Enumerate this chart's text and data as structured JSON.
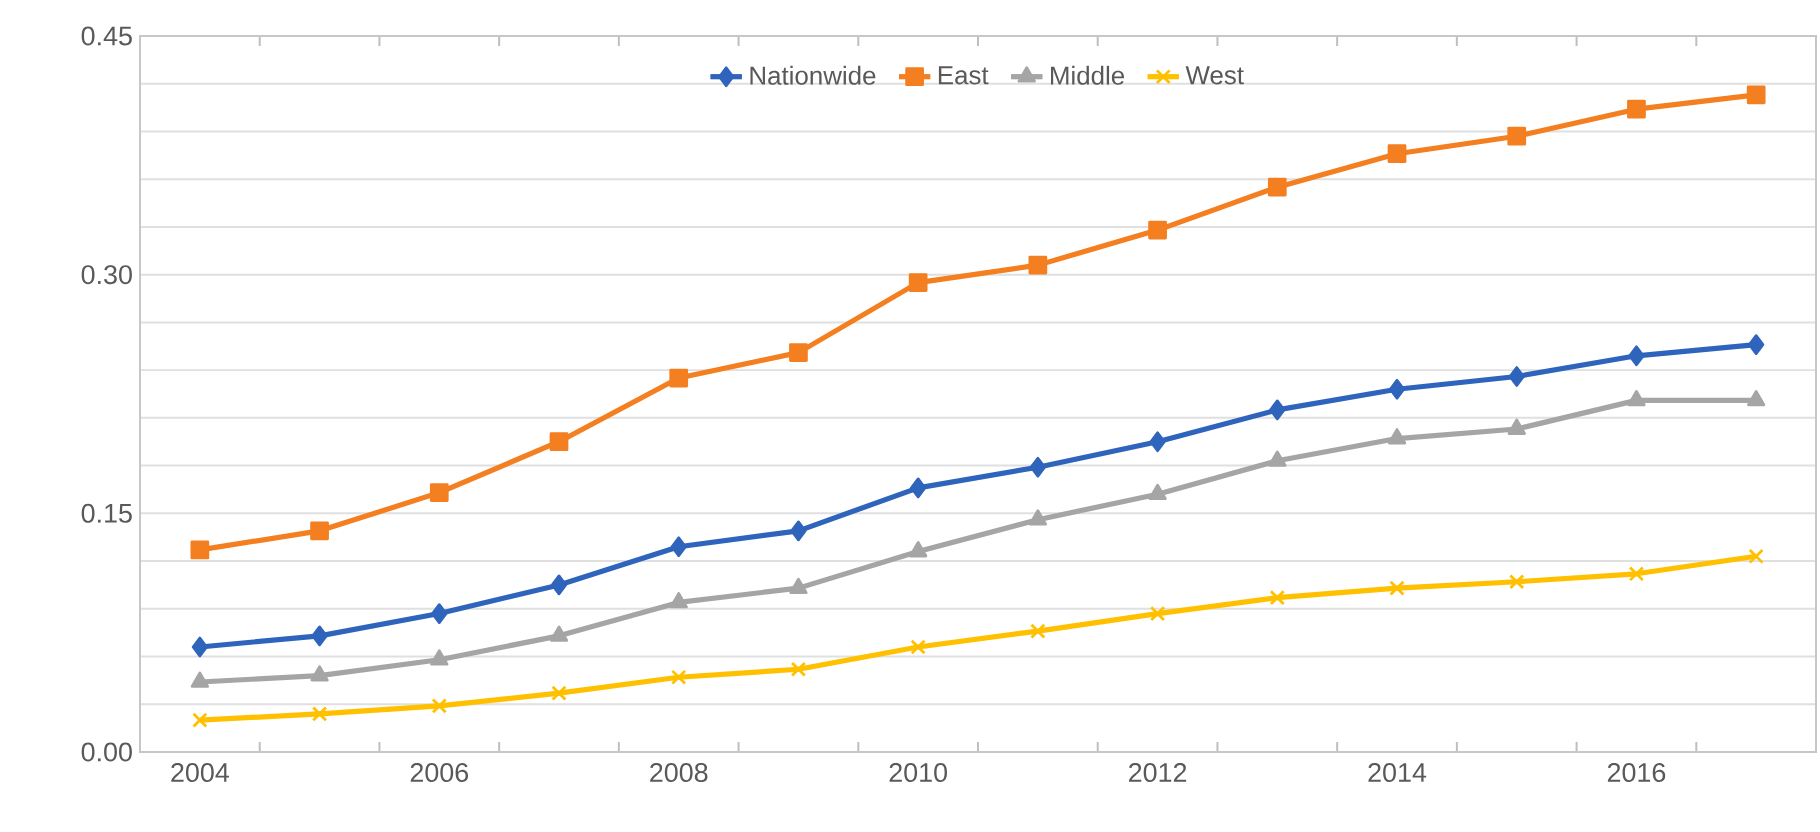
{
  "chart_data": {
    "type": "line",
    "categories": [
      "2004",
      null,
      "2006",
      null,
      "2008",
      null,
      "2010",
      null,
      "2012",
      null,
      "2014",
      null,
      "2016",
      null
    ],
    "series": [
      {
        "name": "Nationwide",
        "color": "#2f64bc",
        "marker": "diamond",
        "values": [
          0.066,
          0.073,
          0.087,
          0.105,
          0.129,
          0.139,
          0.166,
          0.179,
          0.195,
          0.215,
          0.228,
          0.236,
          0.249,
          0.256
        ]
      },
      {
        "name": "East",
        "color": "#f47f20",
        "marker": "square",
        "values": [
          0.127,
          0.139,
          0.163,
          0.195,
          0.235,
          0.251,
          0.295,
          0.306,
          0.328,
          0.355,
          0.376,
          0.387,
          0.404,
          0.413
        ]
      },
      {
        "name": "Middle",
        "color": "#a5a5a5",
        "marker": "triangle",
        "values": [
          0.044,
          0.048,
          0.058,
          0.073,
          0.094,
          0.103,
          0.126,
          0.146,
          0.162,
          0.183,
          0.197,
          0.203,
          0.221,
          0.221
        ]
      },
      {
        "name": "West",
        "color": "#ffc000",
        "marker": "cross",
        "values": [
          0.02,
          0.024,
          0.029,
          0.037,
          0.047,
          0.052,
          0.066,
          0.076,
          0.087,
          0.097,
          0.103,
          0.107,
          0.112,
          0.123
        ]
      }
    ],
    "ylim": [
      0,
      0.45
    ],
    "yticks": [
      {
        "value": 0,
        "label": "0.00"
      },
      {
        "value": 0.03,
        "label": null
      },
      {
        "value": 0.06,
        "label": null
      },
      {
        "value": 0.09,
        "label": null
      },
      {
        "value": 0.12,
        "label": null
      },
      {
        "value": 0.15,
        "label": "0.15"
      },
      {
        "value": 0.18,
        "label": null
      },
      {
        "value": 0.21,
        "label": null
      },
      {
        "value": 0.24,
        "label": null
      },
      {
        "value": 0.27,
        "label": null
      },
      {
        "value": 0.3,
        "label": "0.30"
      },
      {
        "value": 0.33,
        "label": null
      },
      {
        "value": 0.36,
        "label": null
      },
      {
        "value": 0.39,
        "label": null
      },
      {
        "value": 0.42,
        "label": null
      },
      {
        "value": 0.45,
        "label": "0.45"
      }
    ],
    "grid": "y",
    "legend": "top"
  }
}
